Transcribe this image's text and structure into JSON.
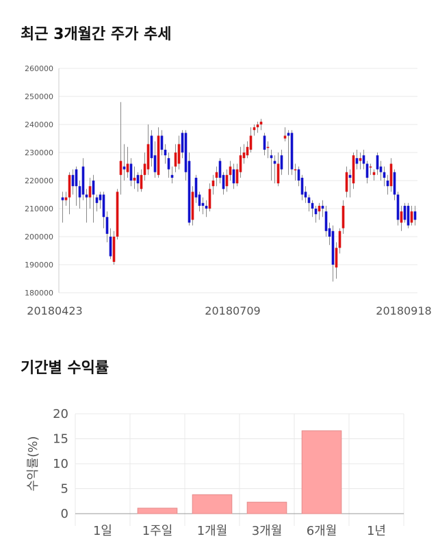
{
  "sections": {
    "price_title": "최근 3개월간 주가 추세",
    "return_title": "기간별 수익률"
  },
  "chart_data": [
    {
      "type": "candlestick",
      "title": "최근 3개월간 주가 추세",
      "ylim": [
        180000,
        260000
      ],
      "y_ticks": [
        180000,
        190000,
        200000,
        210000,
        220000,
        230000,
        240000,
        250000,
        260000
      ],
      "x_tick_labels": [
        "20180423",
        "20180709",
        "20180918"
      ],
      "grid": true,
      "colors": {
        "up": "#dd1111",
        "down": "#1111cc",
        "wick": "#888888"
      },
      "candles": [
        [
          214000,
          213000,
          216000,
          205000
        ],
        [
          213000,
          214000,
          216000,
          211000
        ],
        [
          214000,
          222000,
          223000,
          208000
        ],
        [
          222000,
          218000,
          224000,
          215000
        ],
        [
          224000,
          218000,
          225000,
          211000
        ],
        [
          218000,
          214000,
          220000,
          210000
        ],
        [
          225000,
          215000,
          228000,
          213000
        ],
        [
          215000,
          214000,
          217000,
          205000
        ],
        [
          214000,
          218000,
          221000,
          210000
        ],
        [
          220000,
          215000,
          222000,
          205000
        ],
        [
          214000,
          212000,
          215000,
          209000
        ],
        [
          215000,
          213000,
          216000,
          210000
        ],
        [
          215000,
          207000,
          216000,
          203000
        ],
        [
          207000,
          201000,
          209000,
          198000
        ],
        [
          200000,
          193000,
          203000,
          192000
        ],
        [
          191000,
          200000,
          202000,
          190000
        ],
        [
          200000,
          216000,
          217000,
          199000
        ],
        [
          222000,
          227000,
          248000,
          215000
        ],
        [
          225000,
          224000,
          233000,
          220000
        ],
        [
          223000,
          226000,
          232000,
          221000
        ],
        [
          226000,
          220000,
          228000,
          218000
        ],
        [
          220000,
          221000,
          225000,
          217000
        ],
        [
          222000,
          219000,
          223000,
          216000
        ],
        [
          217000,
          222000,
          224000,
          216000
        ],
        [
          222000,
          226000,
          230000,
          220000
        ],
        [
          224000,
          233000,
          240000,
          222000
        ],
        [
          236000,
          228000,
          238000,
          225000
        ],
        [
          229000,
          223000,
          234000,
          221000
        ],
        [
          222000,
          236000,
          239000,
          221000
        ],
        [
          236000,
          231000,
          238000,
          229000
        ],
        [
          231000,
          229000,
          233000,
          226000
        ],
        [
          228000,
          224000,
          230000,
          221000
        ],
        [
          222000,
          221000,
          225000,
          219000
        ],
        [
          225000,
          230000,
          233000,
          223000
        ],
        [
          226000,
          233000,
          236000,
          224000
        ],
        [
          237000,
          230000,
          238000,
          228000
        ],
        [
          237000,
          223000,
          238000,
          220000
        ],
        [
          227000,
          205000,
          230000,
          204000
        ],
        [
          206000,
          216000,
          218000,
          204000
        ],
        [
          221000,
          214000,
          222000,
          212000
        ],
        [
          215000,
          211000,
          216000,
          209000
        ],
        [
          212000,
          211000,
          214000,
          208000
        ],
        [
          211000,
          210000,
          213000,
          207000
        ],
        [
          210000,
          217000,
          219000,
          209000
        ],
        [
          218000,
          220000,
          222000,
          215000
        ],
        [
          221000,
          223000,
          225000,
          218000
        ],
        [
          227000,
          221000,
          228000,
          219000
        ],
        [
          222000,
          217000,
          223000,
          215000
        ],
        [
          218000,
          222000,
          224000,
          216000
        ],
        [
          222000,
          225000,
          227000,
          220000
        ],
        [
          224000,
          219000,
          226000,
          217000
        ],
        [
          219000,
          224000,
          226000,
          218000
        ],
        [
          223000,
          229000,
          232000,
          221000
        ],
        [
          228000,
          230000,
          233000,
          226000
        ],
        [
          229000,
          232000,
          234000,
          228000
        ],
        [
          231000,
          236000,
          239000,
          230000
        ],
        [
          238000,
          239000,
          240000,
          236000
        ],
        [
          239000,
          240000,
          241000,
          237000
        ],
        [
          240000,
          241000,
          242000,
          238000
        ],
        [
          236000,
          231000,
          237000,
          229000
        ],
        [
          232000,
          232000,
          234000,
          228000
        ],
        [
          229000,
          228000,
          231000,
          220000
        ],
        [
          227000,
          226000,
          229000,
          219000
        ],
        [
          219000,
          226000,
          230000,
          218000
        ],
        [
          229000,
          224000,
          231000,
          222000
        ],
        [
          235000,
          236000,
          239000,
          234000
        ],
        [
          237000,
          236000,
          238000,
          222000
        ],
        [
          237000,
          224000,
          238000,
          222000
        ],
        [
          224000,
          224000,
          226000,
          220000
        ],
        [
          224000,
          220000,
          225000,
          218000
        ],
        [
          221000,
          215000,
          222000,
          213000
        ],
        [
          216000,
          214000,
          218000,
          212000
        ],
        [
          214000,
          212000,
          215000,
          209000
        ],
        [
          212000,
          210000,
          213000,
          207000
        ],
        [
          210000,
          208000,
          211000,
          205000
        ],
        [
          209000,
          211000,
          212000,
          206000
        ],
        [
          211000,
          210000,
          213000,
          207000
        ],
        [
          209000,
          202000,
          211000,
          200000
        ],
        [
          203000,
          200000,
          205000,
          197000
        ],
        [
          202000,
          190000,
          204000,
          184000
        ],
        [
          189000,
          196000,
          198000,
          185000
        ],
        [
          196000,
          202000,
          203000,
          194000
        ],
        [
          203000,
          211000,
          213000,
          201000
        ],
        [
          216000,
          223000,
          225000,
          214000
        ],
        [
          222000,
          221000,
          224000,
          214000
        ],
        [
          219000,
          229000,
          230000,
          217000
        ],
        [
          228000,
          226000,
          231000,
          224000
        ],
        [
          227000,
          228000,
          230000,
          224000
        ],
        [
          229000,
          226000,
          231000,
          224000
        ],
        [
          226000,
          221000,
          227000,
          219000
        ],
        [
          225000,
          225000,
          226000,
          222000
        ],
        [
          222000,
          223000,
          224000,
          220000
        ],
        [
          229000,
          224000,
          230000,
          222000
        ],
        [
          225000,
          223000,
          227000,
          220000
        ],
        [
          223000,
          221000,
          225000,
          218000
        ],
        [
          220000,
          218000,
          222000,
          215000
        ],
        [
          218000,
          226000,
          228000,
          216000
        ],
        [
          223000,
          215000,
          224000,
          213000
        ],
        [
          215000,
          206000,
          216000,
          204000
        ],
        [
          205000,
          209000,
          211000,
          202000
        ],
        [
          211000,
          206000,
          212000,
          205000
        ],
        [
          211000,
          204000,
          212000,
          203000
        ],
        [
          205000,
          209000,
          211000,
          204000
        ],
        [
          209000,
          206000,
          211000,
          204000
        ]
      ]
    },
    {
      "type": "bar",
      "title": "기간별 수익률",
      "categories": [
        "1일",
        "1주일",
        "1개월",
        "3개월",
        "6개월",
        "1년"
      ],
      "values": [
        0,
        1.1,
        3.8,
        2.3,
        16.6,
        0
      ],
      "ylabel": "수익률(%)",
      "ylim": [
        0,
        20
      ],
      "y_ticks": [
        0,
        5,
        10,
        15,
        20
      ],
      "grid": true,
      "colors": {
        "bar": "#ffa3a3",
        "bar_edge": "#e48a8a"
      }
    }
  ]
}
